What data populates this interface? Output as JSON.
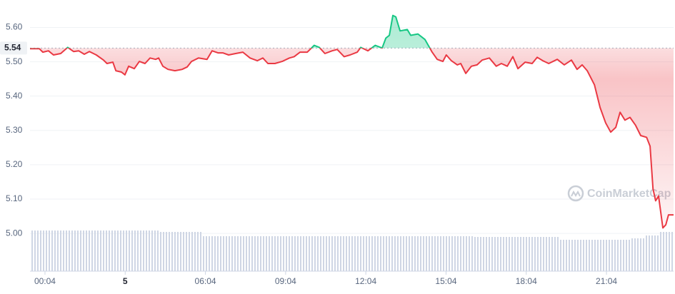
{
  "chart_data": {
    "type": "line",
    "x": [
      -0.56,
      -0.21,
      -0.08,
      0.13,
      0.32,
      0.59,
      0.85,
      1.07,
      1.26,
      1.47,
      1.66,
      1.92,
      2.19,
      2.32,
      2.54,
      2.65,
      2.86,
      2.99,
      3.13,
      3.34,
      3.53,
      3.74,
      3.93,
      4.14,
      4.25,
      4.41,
      4.6,
      4.86,
      5.13,
      5.32,
      5.48,
      5.74,
      6.06,
      6.25,
      6.47,
      6.65,
      6.87,
      7.13,
      7.4,
      7.67,
      7.94,
      8.15,
      8.34,
      8.6,
      8.87,
      9.14,
      9.32,
      9.54,
      9.81,
      10.07,
      10.26,
      10.47,
      10.74,
      10.93,
      11.19,
      11.41,
      11.68,
      11.81,
      12.08,
      12.35,
      12.61,
      12.75,
      12.88,
      13.01,
      13.12,
      13.28,
      13.55,
      13.68,
      13.95,
      14.21,
      14.48,
      14.67,
      14.88,
      15.01,
      15.2,
      15.42,
      15.55,
      15.74,
      15.95,
      16.16,
      16.35,
      16.62,
      16.88,
      17.07,
      17.29,
      17.5,
      17.69,
      17.96,
      18.22,
      18.41,
      18.62,
      18.84,
      19.16,
      19.42,
      19.69,
      19.9,
      20.09,
      20.28,
      20.55,
      20.76,
      20.97,
      21.16,
      21.35,
      21.51,
      21.69,
      21.88,
      22.09,
      22.28,
      22.5,
      22.63,
      22.74,
      22.84,
      22.95,
      23.11,
      23.22,
      23.32,
      23.51
    ],
    "series": [
      {
        "color": "#ea3943",
        "color_up": "#16c784",
        "values": [
          5.538,
          5.538,
          5.528,
          5.532,
          5.52,
          5.524,
          5.542,
          5.53,
          5.532,
          5.522,
          5.53,
          5.52,
          5.505,
          5.495,
          5.499,
          5.474,
          5.47,
          5.462,
          5.487,
          5.48,
          5.501,
          5.495,
          5.511,
          5.507,
          5.511,
          5.487,
          5.478,
          5.474,
          5.478,
          5.485,
          5.501,
          5.511,
          5.507,
          5.532,
          5.526,
          5.526,
          5.52,
          5.524,
          5.528,
          5.511,
          5.503,
          5.511,
          5.495,
          5.495,
          5.501,
          5.511,
          5.515,
          5.528,
          5.528,
          5.548,
          5.542,
          5.524,
          5.532,
          5.536,
          5.515,
          5.52,
          5.528,
          5.542,
          5.532,
          5.548,
          5.54,
          5.569,
          5.577,
          5.635,
          5.631,
          5.59,
          5.594,
          5.577,
          5.581,
          5.565,
          5.528,
          5.507,
          5.501,
          5.52,
          5.503,
          5.491,
          5.495,
          5.466,
          5.487,
          5.491,
          5.505,
          5.511,
          5.487,
          5.495,
          5.487,
          5.515,
          5.48,
          5.499,
          5.495,
          5.513,
          5.503,
          5.495,
          5.507,
          5.491,
          5.505,
          5.478,
          5.491,
          5.474,
          5.433,
          5.367,
          5.322,
          5.295,
          5.309,
          5.353,
          5.33,
          5.338,
          5.315,
          5.285,
          5.28,
          5.254,
          5.13,
          5.095,
          5.109,
          5.016,
          5.025,
          5.054,
          5.054
        ]
      }
    ],
    "reference": 5.54,
    "volume": {
      "color": "#cfd6e4",
      "ylim": [
        0,
        100
      ],
      "values": [
        57,
        57,
        57,
        57,
        57,
        57,
        57,
        57,
        57,
        55,
        55,
        55,
        49,
        49,
        49,
        49,
        49,
        49,
        49,
        49,
        49,
        49,
        49,
        49,
        49,
        49,
        49,
        49,
        49,
        49,
        49,
        48,
        48,
        48,
        48,
        48,
        48,
        44,
        44,
        44,
        44,
        44,
        46,
        50,
        55
      ]
    },
    "xlim": [
      -0.56,
      23.51
    ],
    "ylim": [
      4.89,
      5.68
    ],
    "xticks": [
      {
        "value": 0,
        "label": "00:04"
      },
      {
        "value": 3,
        "label": "5"
      },
      {
        "value": 6,
        "label": "06:04"
      },
      {
        "value": 9,
        "label": "09:04"
      },
      {
        "value": 12,
        "label": "12:04"
      },
      {
        "value": 15,
        "label": "15:04"
      },
      {
        "value": 18,
        "label": "18:04"
      },
      {
        "value": 21,
        "label": "21:04"
      }
    ],
    "yticks": [
      {
        "value": 5.0,
        "label": "5.00"
      },
      {
        "value": 5.1,
        "label": "5.10"
      },
      {
        "value": 5.2,
        "label": "5.20"
      },
      {
        "value": 5.3,
        "label": "5.30"
      },
      {
        "value": 5.4,
        "label": "5.40"
      },
      {
        "value": 5.5,
        "label": "5.50"
      },
      {
        "value": 5.6,
        "label": "5.60"
      }
    ],
    "grid": true,
    "watermark": "CoinMarketCap"
  }
}
